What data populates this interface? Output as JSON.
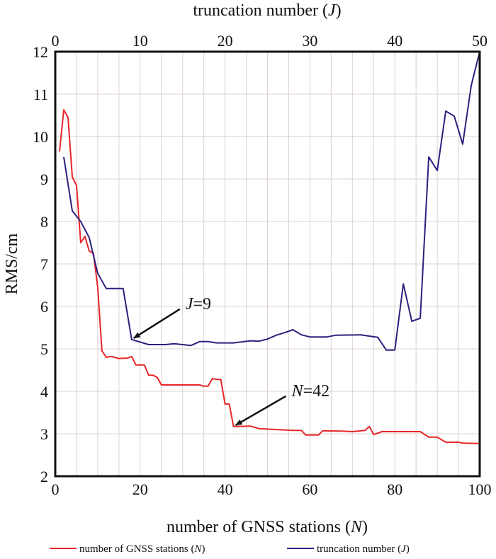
{
  "chart_data": {
    "type": "line",
    "title": "",
    "xlabel": "number of GNSS stations (N)",
    "xlabel_main": "number of GNSS stations (",
    "xlabel_var": "N",
    "x2label": "truncation number (J)",
    "x2label_main": "truncation number (",
    "x2label_var": "J",
    "ylabel": "RMS/cm",
    "xlim": [
      0,
      100
    ],
    "x2lim": [
      0,
      50
    ],
    "ylim": [
      2,
      12
    ],
    "xticks": [
      "0",
      "20",
      "40",
      "60",
      "80",
      "100"
    ],
    "x2ticks": [
      "0",
      "10",
      "20",
      "30",
      "40",
      "50"
    ],
    "yticks": [
      "2",
      "3",
      "4",
      "5",
      "6",
      "7",
      "8",
      "9",
      "10",
      "11",
      "12"
    ],
    "grid": true,
    "legend_position": "bottom",
    "series": [
      {
        "name": "number of GNSS stations (N)",
        "name_main": "number of GNSS stations (",
        "name_var": "N",
        "axis": "bottom",
        "color": "#e8262a",
        "x": [
          1,
          2,
          3,
          4,
          5,
          6,
          7,
          8,
          9,
          10,
          11,
          12,
          13,
          14,
          15,
          16,
          17,
          18,
          19,
          21,
          22,
          23,
          24,
          25,
          34,
          35,
          36,
          37,
          38,
          39,
          40,
          41,
          42,
          46,
          48,
          56,
          58,
          59,
          62,
          63,
          68,
          70,
          73,
          74,
          75,
          77,
          86,
          88,
          90,
          92,
          95,
          96,
          100
        ],
        "y": [
          9.65,
          10.63,
          10.45,
          9.05,
          8.85,
          7.5,
          7.65,
          7.3,
          7.25,
          6.45,
          4.95,
          4.8,
          4.82,
          4.8,
          4.77,
          4.78,
          4.78,
          4.82,
          4.62,
          4.62,
          4.38,
          4.38,
          4.33,
          4.15,
          4.15,
          4.12,
          4.12,
          4.3,
          4.28,
          4.28,
          3.7,
          3.7,
          3.17,
          3.18,
          3.12,
          3.08,
          3.08,
          2.97,
          2.97,
          3.07,
          3.06,
          3.05,
          3.08,
          3.17,
          2.98,
          3.05,
          3.05,
          2.92,
          2.92,
          2.8,
          2.8,
          2.78,
          2.77
        ]
      },
      {
        "name": "truncation number (J)",
        "name_main": "truncation number (",
        "name_var": "J",
        "axis": "top",
        "color": "#2e1f7e",
        "x": [
          1,
          2,
          3,
          4,
          5,
          6,
          8,
          9,
          11,
          13,
          14,
          16,
          17,
          18,
          19,
          21,
          23,
          24,
          25,
          26,
          27,
          28,
          29,
          30,
          32,
          33,
          36,
          38,
          39,
          40,
          41,
          42,
          43,
          44,
          45,
          46,
          47,
          48,
          49,
          50
        ],
        "y": [
          9.52,
          8.25,
          8.0,
          7.62,
          6.78,
          6.42,
          6.42,
          5.22,
          5.1,
          5.1,
          5.12,
          5.08,
          5.17,
          5.17,
          5.14,
          5.14,
          5.19,
          5.18,
          5.23,
          5.32,
          5.38,
          5.45,
          5.33,
          5.28,
          5.28,
          5.32,
          5.33,
          5.27,
          4.97,
          4.97,
          6.53,
          5.65,
          5.72,
          9.52,
          9.2,
          10.6,
          10.48,
          9.82,
          11.2,
          12.1
        ]
      }
    ],
    "annotations": [
      {
        "var": "J",
        "text": "=9",
        "series": 1,
        "x": 9,
        "y": 5.22
      },
      {
        "var": "N",
        "text": "=42",
        "series": 0,
        "x": 42,
        "y": 3.17
      }
    ]
  }
}
